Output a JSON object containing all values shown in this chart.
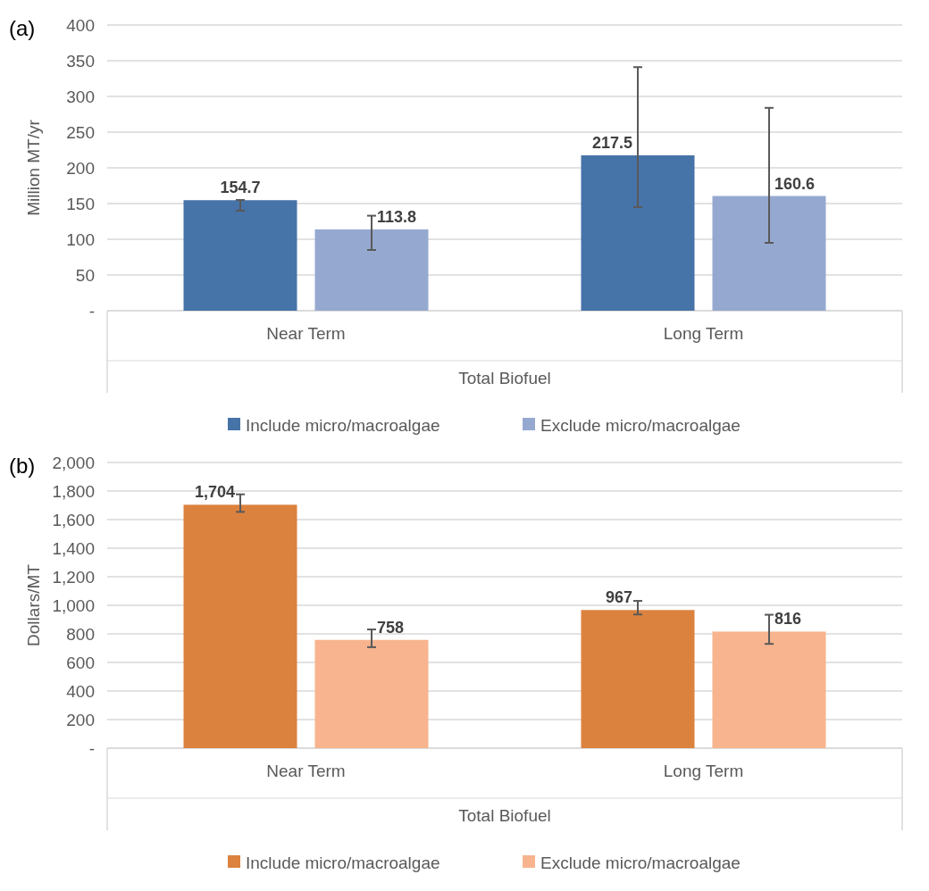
{
  "chart_data": [
    {
      "type": "bar",
      "title": "(a)",
      "xlabel": "Total Biofuel",
      "ylabel": "Million MT/yr",
      "categories": [
        "Near Term",
        "Long Term"
      ],
      "series": [
        {
          "name": "Include micro/macroalgae",
          "color": "#4673a8",
          "values": [
            154.7,
            217.5
          ],
          "errors": [
            [
              140,
              155
            ],
            [
              145,
              341
            ]
          ]
        },
        {
          "name": "Exclude micro/macroalgae",
          "color": "#95a9d0",
          "values": [
            113.8,
            160.6
          ],
          "errors": [
            [
              85,
              133
            ],
            [
              95,
              284
            ]
          ]
        }
      ],
      "ylim": [
        0,
        400
      ],
      "yticks": [
        {
          "value": 0,
          "label": "-"
        },
        50,
        100,
        150,
        200,
        250,
        300,
        350,
        400
      ],
      "grid": "y",
      "legend": "bottom",
      "data_labels": true
    },
    {
      "type": "bar",
      "title": "(b)",
      "xlabel": "Total Biofuel",
      "ylabel": "Dollars/MT",
      "categories": [
        "Near Term",
        "Long Term"
      ],
      "series": [
        {
          "name": "Include micro/macroalgae",
          "color": "#db823f",
          "values": [
            1704,
            967
          ],
          "errors": [
            [
              1654,
              1777
            ],
            [
              936,
              1031
            ]
          ],
          "value_labels": [
            "1,704",
            "967"
          ]
        },
        {
          "name": "Exclude micro/macroalgae",
          "color": "#f7b48e",
          "values": [
            758,
            816
          ],
          "errors": [
            [
              707,
              831
            ],
            [
              730,
              934
            ]
          ],
          "value_labels": [
            "758",
            "816"
          ]
        }
      ],
      "ylim": [
        0,
        2000
      ],
      "yticks": [
        {
          "value": 0,
          "label": "-"
        },
        {
          "value": 200,
          "label": "200"
        },
        {
          "value": 400,
          "label": "400"
        },
        {
          "value": 600,
          "label": "600"
        },
        {
          "value": 800,
          "label": "800"
        },
        {
          "value": 1000,
          "label": "1,000"
        },
        {
          "value": 1200,
          "label": "1,200"
        },
        {
          "value": 1400,
          "label": "1,400"
        },
        {
          "value": 1600,
          "label": "1,600"
        },
        {
          "value": 1800,
          "label": "1,800"
        },
        {
          "value": 2000,
          "label": "2,000"
        }
      ],
      "grid": "y",
      "legend": "bottom"
    }
  ]
}
